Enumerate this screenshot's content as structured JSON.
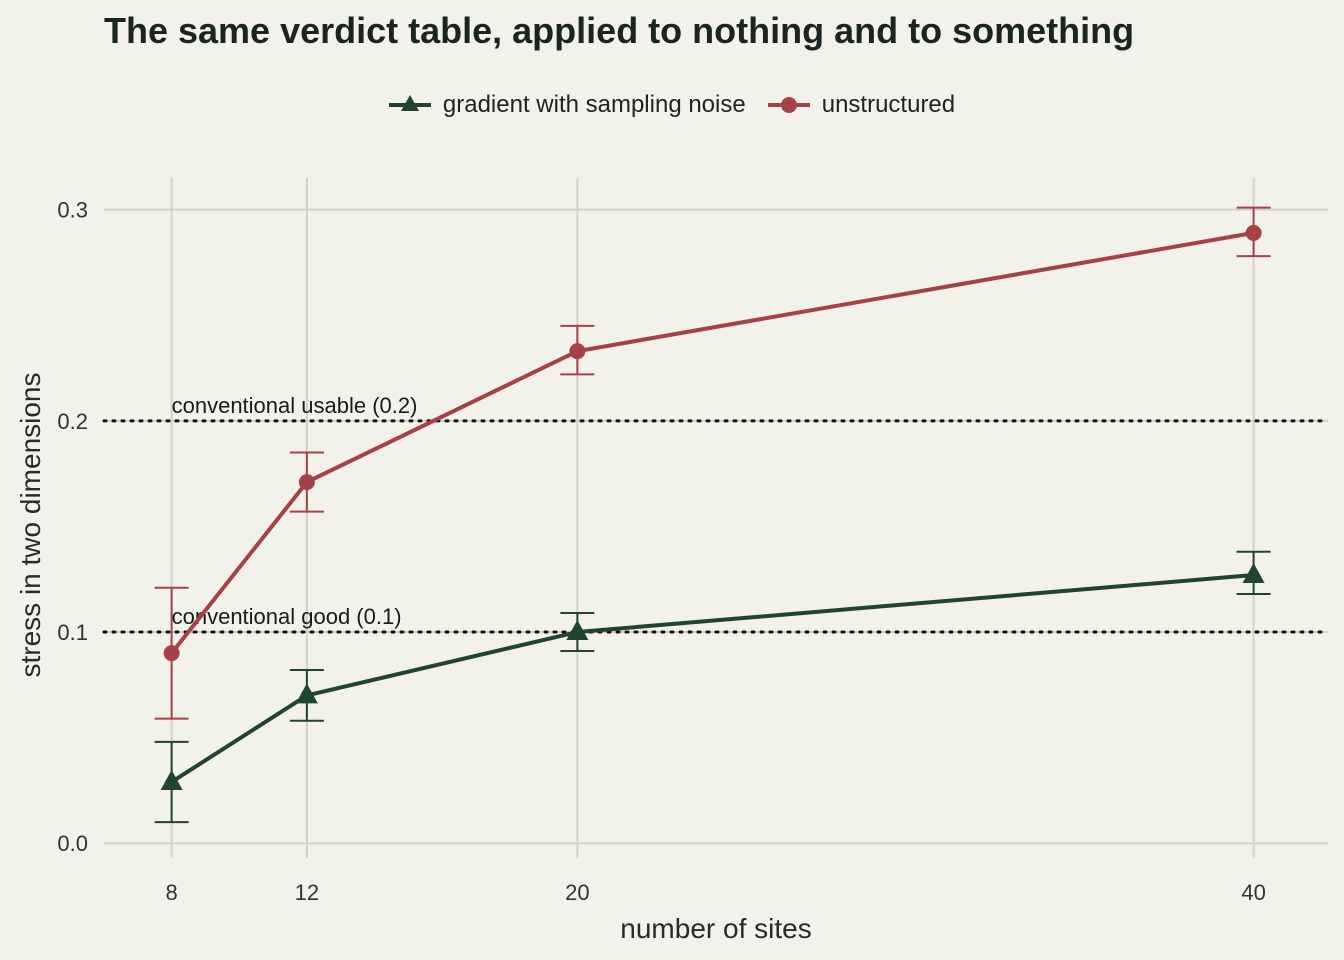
{
  "chart_data": {
    "type": "line",
    "title": "The same verdict table, applied to nothing and to something",
    "xlabel": "number of sites",
    "ylabel": "stress in two dimensions",
    "x": [
      8,
      12,
      20,
      40
    ],
    "x_ticks": [
      8,
      12,
      20,
      40
    ],
    "y_ticks": [
      0.0,
      0.1,
      0.2,
      0.3
    ],
    "y_tick_labels": [
      "0.0",
      "0.1",
      "0.2",
      "0.3"
    ],
    "xlim": [
      6,
      42.2
    ],
    "ylim": [
      -0.007,
      0.315
    ],
    "grid": "vertical and horizontal major lines",
    "legend_position": "top",
    "series": [
      {
        "name": "gradient with sampling noise",
        "marker": "triangle",
        "color": "#1f4530",
        "values": [
          0.029,
          0.07,
          0.1,
          0.127
        ],
        "err_low": [
          0.01,
          0.058,
          0.091,
          0.118
        ],
        "err_high": [
          0.048,
          0.082,
          0.109,
          0.138
        ]
      },
      {
        "name": "unstructured",
        "marker": "circle",
        "color": "#a54245",
        "values": [
          0.09,
          0.171,
          0.233,
          0.289
        ],
        "err_low": [
          0.059,
          0.157,
          0.222,
          0.278
        ],
        "err_high": [
          0.121,
          0.185,
          0.245,
          0.301
        ]
      }
    ],
    "reference_lines": [
      {
        "y": 0.2,
        "label": "conventional usable (0.2)"
      },
      {
        "y": 0.1,
        "label": "conventional good (0.1)"
      }
    ]
  }
}
